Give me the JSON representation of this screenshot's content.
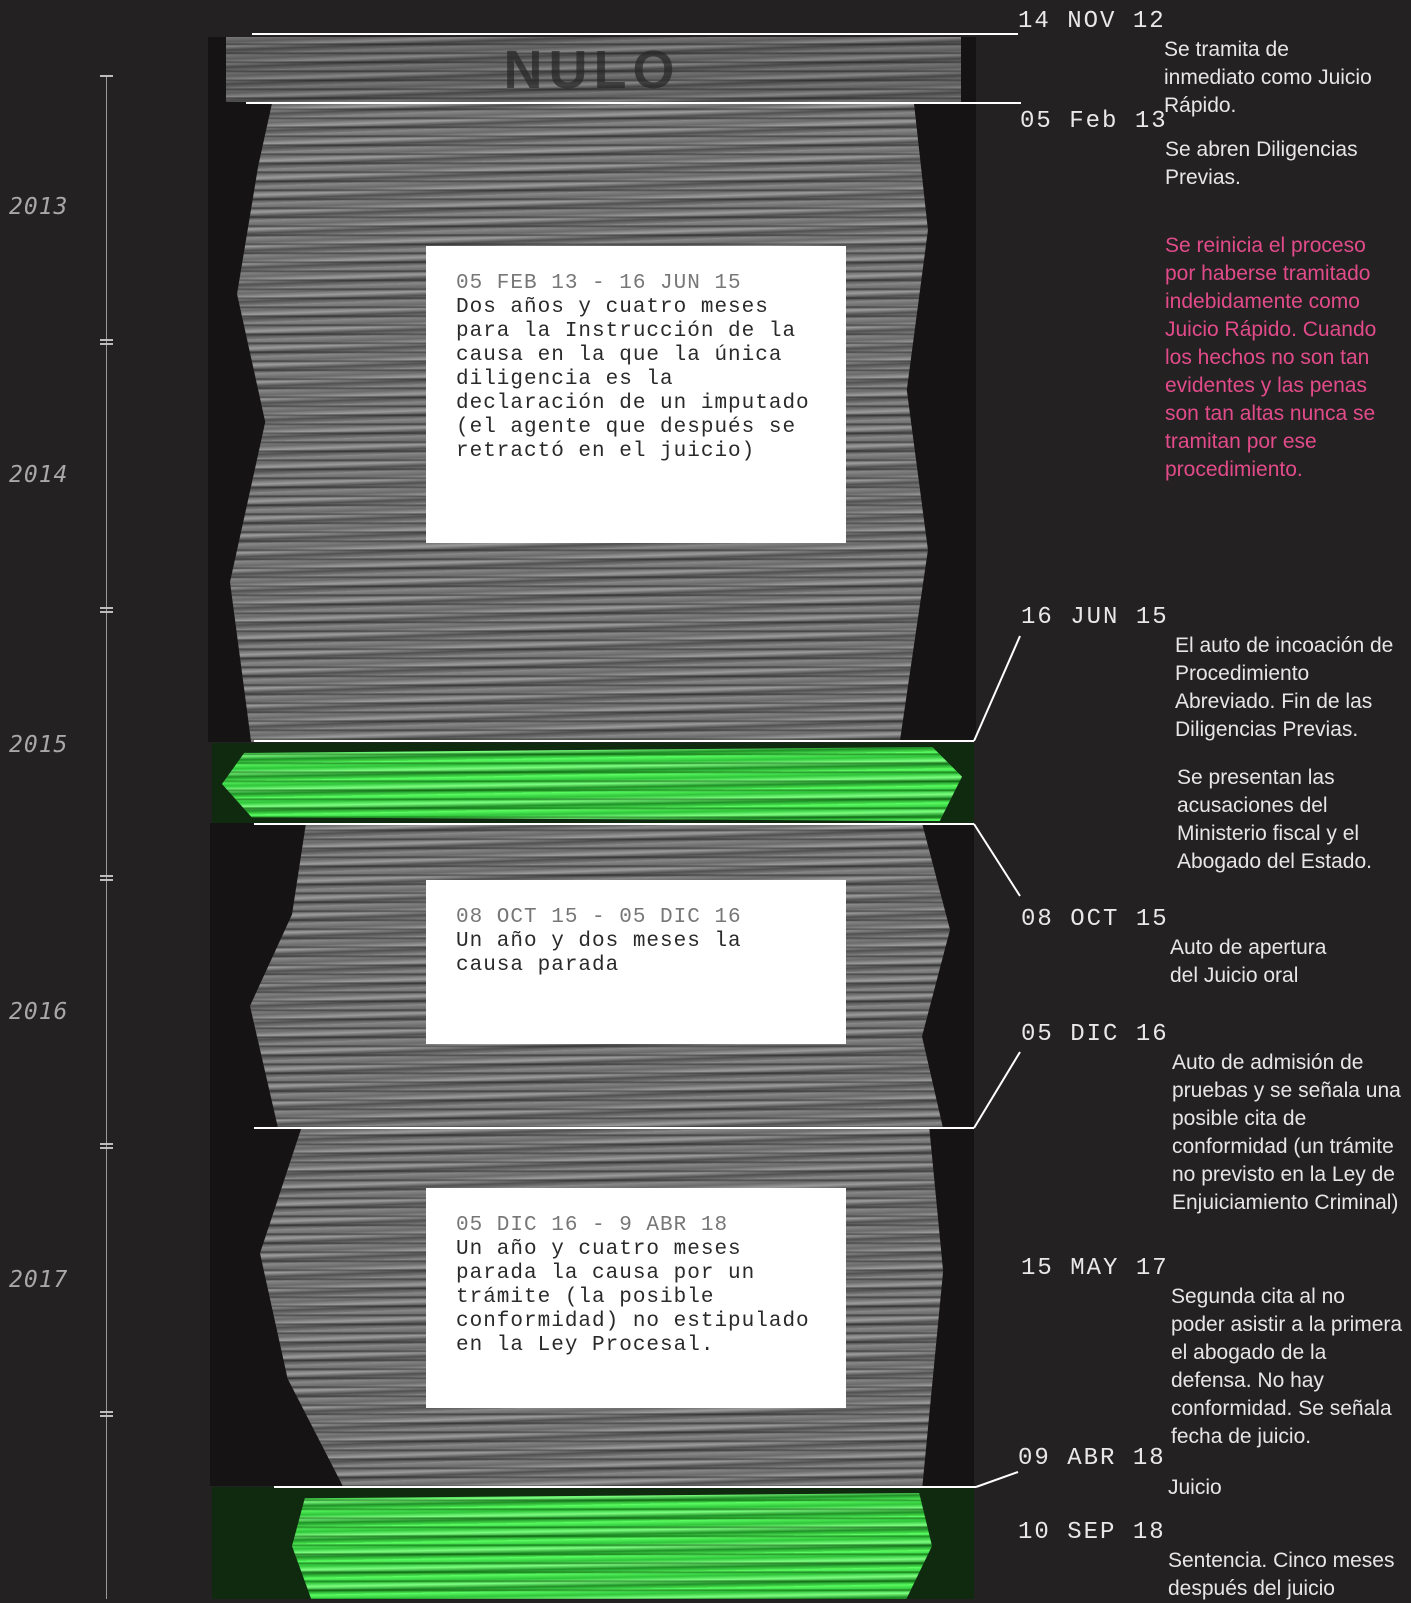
{
  "axis": {
    "years": [
      "2013",
      "2014",
      "2015",
      "2016",
      "2017"
    ]
  },
  "stack": {
    "stamp": "NULO",
    "boxes": [
      {
        "range": "05 FEB 13 - 16 JUN 15",
        "text": "Dos años y cuatro meses para la Instrucción de la causa en la que la única diligencia es la declaración de un imputado (el agente que después se retractó en el juicio)"
      },
      {
        "range": "08 OCT 15 - 05 DIC 16",
        "text": "Un año y dos meses la causa parada"
      },
      {
        "range": "05 DIC 16 - 9 ABR 18",
        "text": "Un año y cuatro meses parada la causa por un trámite (la posible conformidad) no estipulado en la Ley Procesal."
      }
    ],
    "colors": {
      "paper": "#7c7c7c",
      "highlight": "#4ae651",
      "background": "#242122",
      "note": "#e24b8a"
    }
  },
  "events": [
    {
      "date": "14 NOV 12",
      "text": "Se tramita de inmediato como Juicio Rápido."
    },
    {
      "date": "05 Feb 13",
      "text": "Se abren Diligencias Previas."
    },
    {
      "date": "",
      "text": "Se reinicia el proceso por haberse tramitado indebidamente como Juicio Rápido. Cuando los hechos no son tan evidentes y las penas son tan altas nunca se tramitan por ese procedimiento."
    },
    {
      "date": "16 JUN 15",
      "text": "El auto de incoación de Procedimiento Abreviado. Fin de las Diligencias Previas."
    },
    {
      "date": "",
      "text": "Se presentan las acusaciones del Ministerio fiscal y el Abogado del Estado."
    },
    {
      "date": "08 OCT 15",
      "text": "Auto de apertura del Juicio oral"
    },
    {
      "date": "05 DIC 16",
      "text": "Auto de admisión de pruebas y se señala una posible cita de conformidad (un trámite no previsto en la Ley de Enjuiciamiento Criminal)"
    },
    {
      "date": "15 MAY 17",
      "text": "Segunda cita al no poder asistir a la primera el abogado de la defensa. No hay conformidad. Se señala fecha de juicio."
    },
    {
      "date": "09 ABR 18",
      "text": "Juicio"
    },
    {
      "date": "10 SEP 18",
      "text": "Sentencia. Cinco meses después del juicio"
    }
  ]
}
